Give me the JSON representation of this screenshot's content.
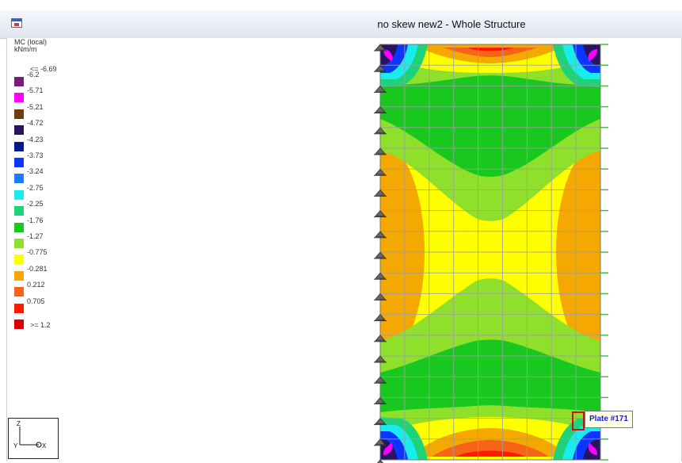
{
  "window": {
    "title": "no skew new2 - Whole Structure"
  },
  "legend": {
    "heading": "MC (local)",
    "unit": "kNm/m",
    "min_label": "<= -6.69",
    "max_label": ">= 1.2",
    "entries": [
      {
        "value": "-6.2",
        "color": "#7a1a7a"
      },
      {
        "value": "-5.71",
        "color": "#ff00ff"
      },
      {
        "value": "-5.21",
        "color": "#6b3a10"
      },
      {
        "value": "-4.72",
        "color": "#2a1360"
      },
      {
        "value": "-4.23",
        "color": "#001c8a"
      },
      {
        "value": "-3.73",
        "color": "#0a36ff"
      },
      {
        "value": "-3.24",
        "color": "#1e7cff"
      },
      {
        "value": "-2.75",
        "color": "#19ecec"
      },
      {
        "value": "-2.25",
        "color": "#1ed27a"
      },
      {
        "value": "-1.76",
        "color": "#19c81e"
      },
      {
        "value": "-1.27",
        "color": "#8fe02a"
      },
      {
        "value": "-0.775",
        "color": "#ffff00"
      },
      {
        "value": "-0.281",
        "color": "#f5a800"
      },
      {
        "value": "0.212",
        "color": "#f76418"
      },
      {
        "value": "0.705",
        "color": "#ff1a00"
      },
      {
        "value": "",
        "color": "#dd0000"
      }
    ]
  },
  "tooltip": {
    "text": "Plate #171"
  },
  "axes": {
    "x_label": "X",
    "y_label": "Y",
    "z_label": "Z"
  },
  "colors": {
    "background": "#ffffff",
    "grid": "#9aa0a6",
    "support": "#555555"
  }
}
